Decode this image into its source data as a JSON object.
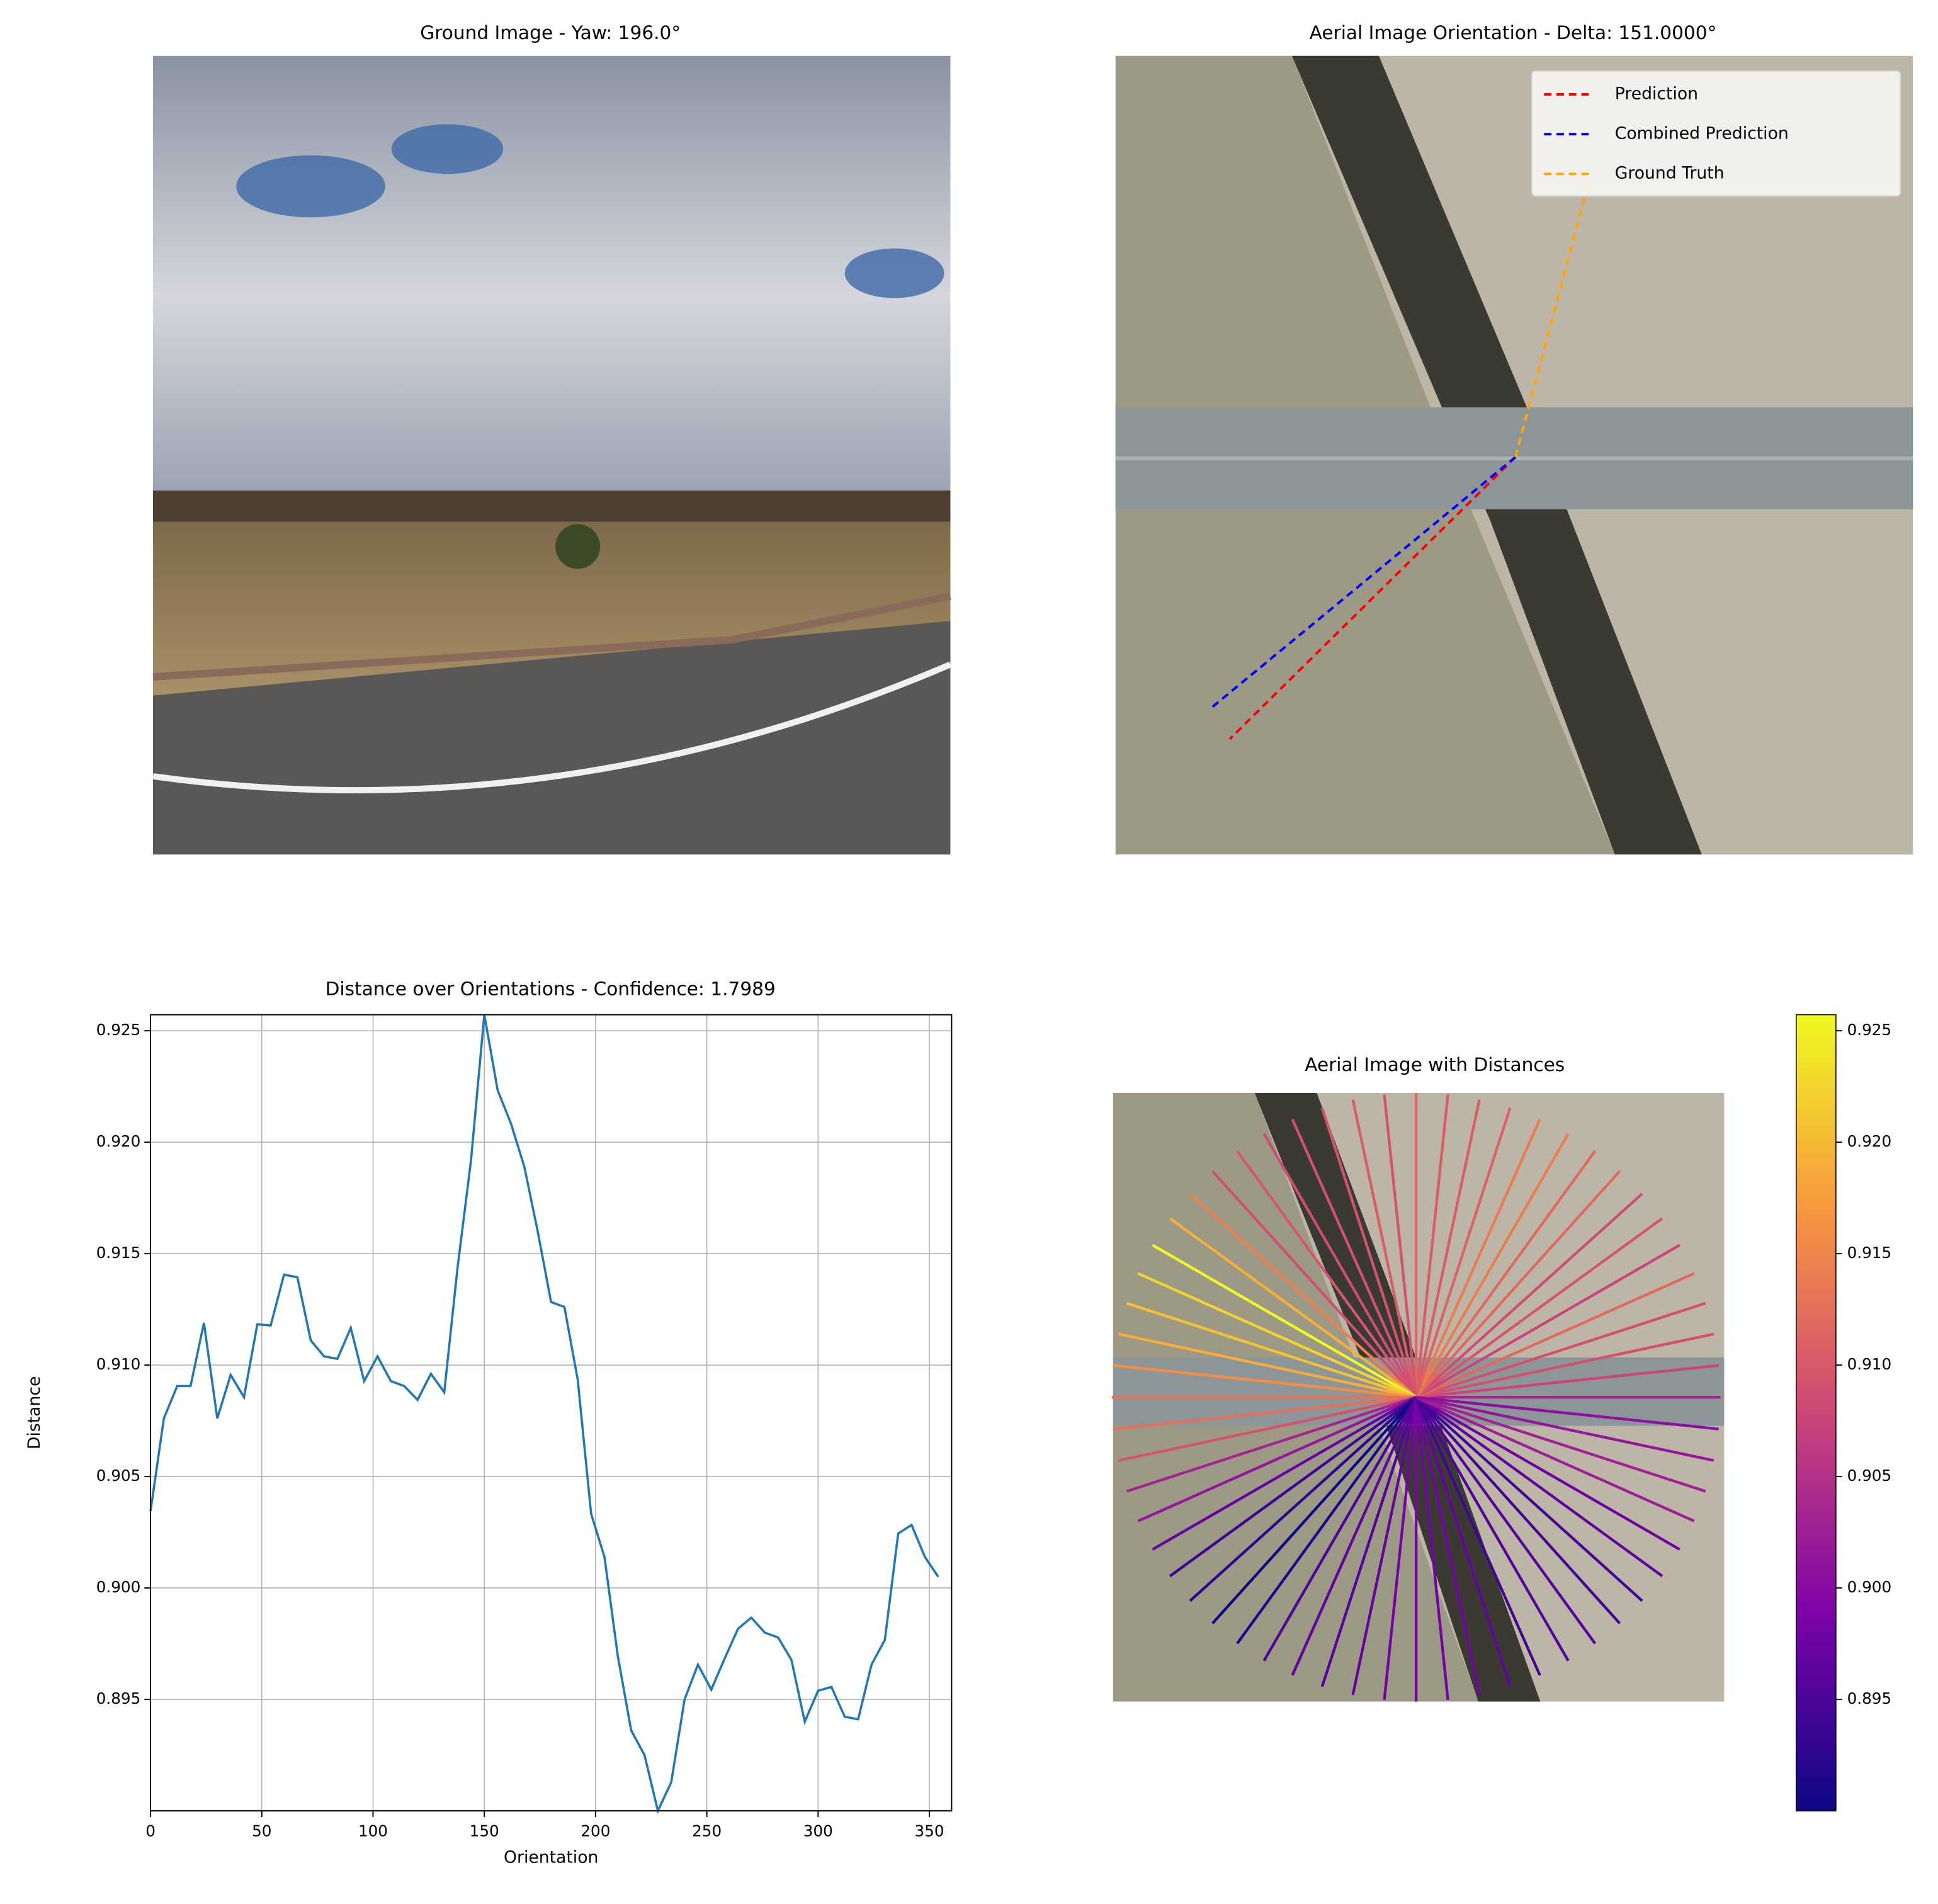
{
  "chart_data": [
    {
      "type": "image",
      "title": "Ground Image - Yaw: 196.0°"
    },
    {
      "type": "image",
      "title": "Aerial Image Orientation - Delta: 151.0000°",
      "legend": "upper right",
      "series": [
        {
          "name": "Prediction",
          "color": "#ff0000"
        },
        {
          "name": "Combined Prediction",
          "color": "#0000ff"
        },
        {
          "name": "Ground Truth",
          "color": "#ffa500"
        }
      ]
    },
    {
      "type": "line",
      "title": "Distance over Orientations - Confidence: 1.7989",
      "xlabel": "Orientation",
      "ylabel": "Distance",
      "color": "#1f77b4",
      "grid": true,
      "x": [
        0,
        6,
        12,
        18,
        24,
        30,
        36,
        42,
        48,
        54,
        60,
        66,
        72,
        78,
        84,
        90,
        96,
        102,
        108,
        114,
        120,
        126,
        132,
        138,
        144,
        150,
        156,
        162,
        168,
        174,
        180,
        186,
        192,
        198,
        204,
        210,
        216,
        222,
        228,
        234,
        240,
        246,
        252,
        258,
        264,
        270,
        276,
        282,
        288,
        294,
        300,
        306,
        312,
        318,
        324,
        330,
        336,
        342,
        348,
        354
      ],
      "values": [
        0.90344,
        0.90761,
        0.90906,
        0.90906,
        0.91189,
        0.90761,
        0.90956,
        0.90856,
        0.91183,
        0.91178,
        0.91406,
        0.91394,
        0.91111,
        0.91039,
        0.91028,
        0.91167,
        0.90928,
        0.91039,
        0.90928,
        0.90906,
        0.90844,
        0.90961,
        0.90878,
        0.91439,
        0.91917,
        0.92572,
        0.92233,
        0.92083,
        0.91889,
        0.916,
        0.91283,
        0.91261,
        0.90933,
        0.90333,
        0.90139,
        0.89694,
        0.89361,
        0.8925,
        0.89,
        0.89128,
        0.895,
        0.89656,
        0.89544,
        0.89683,
        0.89817,
        0.89867,
        0.898,
        0.89778,
        0.89678,
        0.894,
        0.89539,
        0.89556,
        0.89422,
        0.89411,
        0.89656,
        0.89767,
        0.90244,
        0.90283,
        0.90139,
        0.9005
      ],
      "xlim": [
        0,
        360
      ],
      "xticks": [
        0,
        50,
        100,
        150,
        200,
        250,
        300,
        350
      ],
      "ylim": [
        0.89,
        0.92572
      ],
      "yticks": [
        0.895,
        {
          "value": 0.9,
          "label": "0.900"
        },
        0.905,
        {
          "value": 0.91,
          "label": "0.910"
        },
        0.915,
        {
          "value": 0.92,
          "label": "0.920"
        },
        0.925
      ]
    },
    {
      "type": "radial",
      "title": "Aerial Image with Distances",
      "colormap": "plasma",
      "ylim": [
        0.89,
        0.92572
      ],
      "yticks": [
        0.895,
        {
          "value": 0.9,
          "label": "0.900"
        },
        0.905,
        {
          "value": 0.91,
          "label": "0.910"
        },
        0.915,
        {
          "value": 0.92,
          "label": "0.920"
        },
        0.925
      ]
    }
  ]
}
